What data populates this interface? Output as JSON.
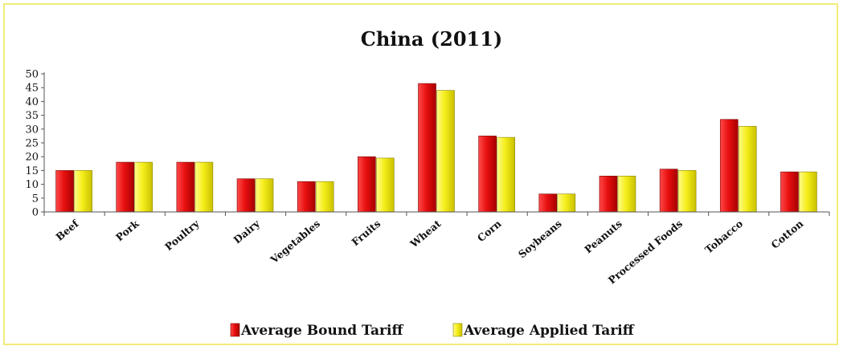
{
  "chart_data": {
    "type": "bar",
    "title": "China (2011)",
    "xlabel": "",
    "ylabel": "",
    "ylim": [
      0,
      50
    ],
    "yticks": [
      0,
      5,
      10,
      15,
      20,
      25,
      30,
      35,
      40,
      45,
      50
    ],
    "grid": false,
    "legend_position": "bottom",
    "categories": [
      "Beef",
      "Pork",
      "Poultry",
      "Dairy",
      "Vegetables",
      "Fruits",
      "Wheat",
      "Corn",
      "Soybeans",
      "Peanuts",
      "Processed Foods",
      "Tobacco",
      "Cotton"
    ],
    "series": [
      {
        "name": "Average Bound Tariff",
        "color": "#ee1111",
        "values": [
          15,
          18,
          18,
          12,
          11,
          20,
          46.5,
          27.5,
          6.5,
          13,
          15.5,
          33.5,
          14.5
        ]
      },
      {
        "name": "Average Applied Tariff",
        "color": "#f5ee1a",
        "values": [
          15,
          18,
          18,
          12,
          11,
          19.5,
          44,
          27,
          6.5,
          13,
          15,
          31,
          14.5
        ]
      }
    ]
  }
}
